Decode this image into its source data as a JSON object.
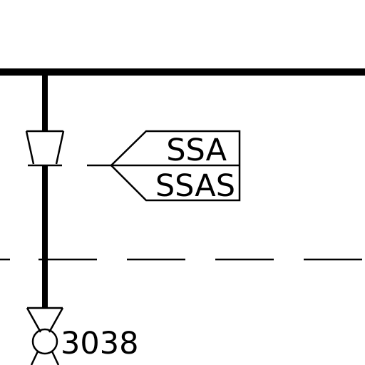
{
  "diagram": {
    "tag_top": "SSA",
    "tag_bottom": "SSAS",
    "device_number": "3038"
  },
  "colors": {
    "line": "#000000",
    "background": "#ffffff"
  },
  "icons": {
    "tag": "flag-tag-icon",
    "reducer": "reducer-icon",
    "valve": "valve-icon"
  }
}
